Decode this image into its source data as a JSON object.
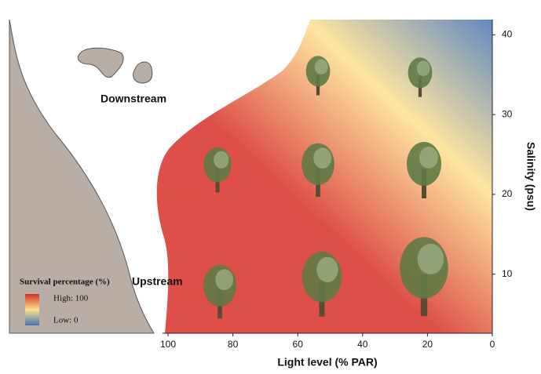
{
  "chart_data": {
    "type": "heatmap",
    "x_label": "Light level (% PAR)",
    "y_label": "Salinity (psu)",
    "xlim": [
      101.7,
      0
    ],
    "xticks": [
      100,
      80,
      60,
      40,
      20,
      0
    ],
    "ylim": [
      2.6,
      41.9
    ],
    "yticks": [
      10,
      20,
      30,
      40
    ],
    "legend": {
      "title": "Survival percentage (%)",
      "high": "High: 100",
      "low": "Low: 0",
      "colors": [
        "#d73027",
        "#fee090",
        "#4575b4"
      ]
    },
    "annotations": [
      "Downstream",
      "Upstream"
    ]
  }
}
